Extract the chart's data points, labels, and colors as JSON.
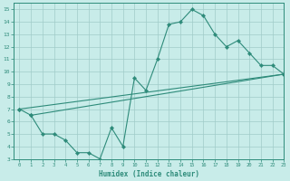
{
  "line1_x": [
    0,
    1,
    2,
    3,
    4,
    5,
    6,
    7,
    8,
    9,
    10,
    11,
    12,
    13,
    14,
    15,
    16,
    17,
    18,
    19,
    20,
    21,
    22,
    23
  ],
  "line1_y": [
    7.0,
    6.5,
    5.0,
    5.0,
    4.5,
    3.5,
    3.5,
    3.0,
    5.5,
    4.0,
    9.5,
    8.5,
    11.0,
    13.8,
    14.0,
    15.0,
    14.5,
    13.0,
    12.0,
    12.5,
    11.5,
    10.5,
    10.5,
    9.8
  ],
  "line2_x": [
    0,
    23
  ],
  "line2_y": [
    7.0,
    9.8
  ],
  "line3_x": [
    1,
    23
  ],
  "line3_y": [
    6.5,
    9.8
  ],
  "line_color": "#2e8b7a",
  "bg_color": "#c8ece9",
  "grid_color": "#a0ccc8",
  "xlabel": "Humidex (Indice chaleur)",
  "xlim": [
    -0.5,
    23
  ],
  "ylim": [
    3,
    15.5
  ],
  "xticks": [
    0,
    1,
    2,
    3,
    4,
    5,
    6,
    7,
    8,
    9,
    10,
    11,
    12,
    13,
    14,
    15,
    16,
    17,
    18,
    19,
    20,
    21,
    22,
    23
  ],
  "yticks": [
    3,
    4,
    5,
    6,
    7,
    8,
    9,
    10,
    11,
    12,
    13,
    14,
    15
  ]
}
